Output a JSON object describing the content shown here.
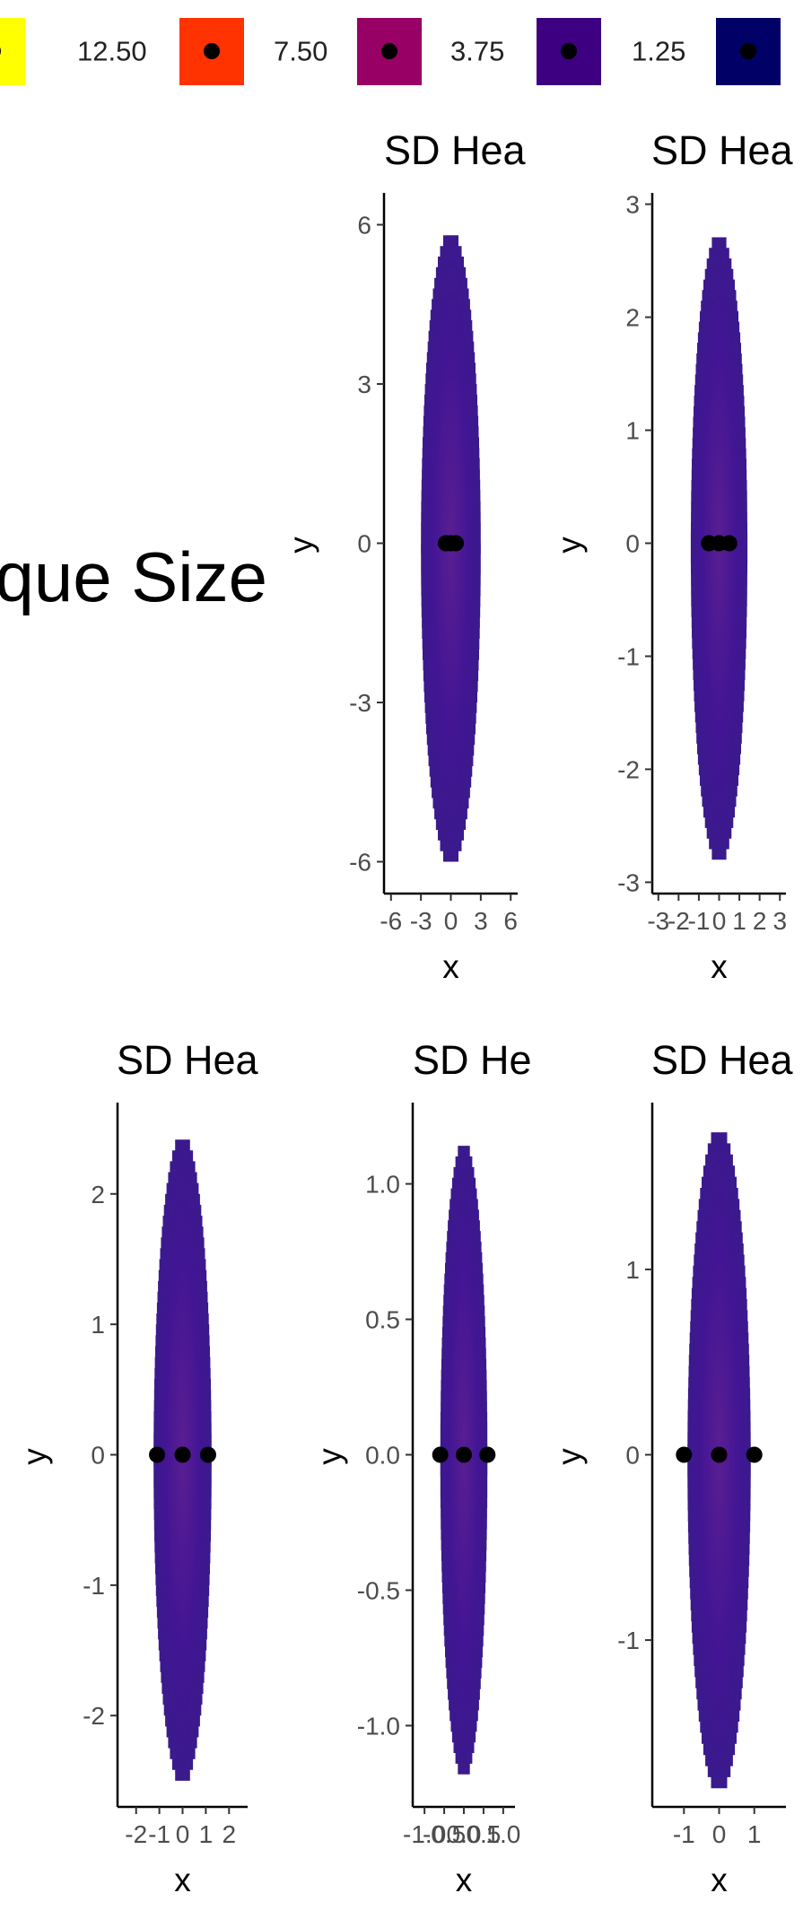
{
  "legend": {
    "items": [
      {
        "label": "12.50",
        "color": "#ffff00"
      },
      {
        "label": "7.50",
        "color": "#ff3300"
      },
      {
        "label": "3.75",
        "color": "#990066"
      },
      {
        "label": "1.25",
        "color": "#3d0080"
      },
      {
        "label": "",
        "color": "#000066"
      }
    ]
  },
  "side_label": "que Size",
  "colors": {
    "fill_main": "#421594",
    "fill_edge": "#3a1a8c",
    "fill_center": "#5a1e92",
    "point": "#000000"
  },
  "chart_data": [
    {
      "type": "heatmap",
      "title": "SD Hea",
      "xlabel": "x",
      "ylabel": "y",
      "xlim": [
        -6.7,
        6.7
      ],
      "ylim": [
        -6.6,
        6.6
      ],
      "x_ticks": [
        "-6",
        "-3",
        "0",
        "3",
        "6"
      ],
      "x_tick_values": [
        -6,
        -3,
        0,
        3,
        6
      ],
      "y_ticks": [
        "6",
        "3",
        "0",
        "-3",
        "-6"
      ],
      "y_tick_values": [
        6,
        3,
        0,
        -3,
        -6
      ],
      "ellipse": {
        "rx": 3.0,
        "ry": 6.0
      },
      "points": [
        {
          "x": -0.5,
          "y": 0
        },
        {
          "x": 0,
          "y": 0
        },
        {
          "x": 0.5,
          "y": 0
        }
      ]
    },
    {
      "type": "heatmap",
      "title": "SD Hea",
      "xlabel": "x",
      "ylabel": "y",
      "xlim": [
        -3.3,
        3.3
      ],
      "ylim": [
        -3.1,
        3.1
      ],
      "x_ticks": [
        "-3",
        "-2",
        "-1",
        "0",
        "1",
        "2",
        "3"
      ],
      "x_tick_values": [
        -3,
        -2,
        -1,
        0,
        1,
        2,
        3
      ],
      "y_ticks": [
        "3",
        "2",
        "1",
        "0",
        "-1",
        "-2",
        "-3"
      ],
      "y_tick_values": [
        3,
        2,
        1,
        0,
        -1,
        -2,
        -3
      ],
      "ellipse": {
        "rx": 1.4,
        "ry": 2.8
      },
      "points": [
        {
          "x": -0.5,
          "y": 0
        },
        {
          "x": 0,
          "y": 0
        },
        {
          "x": 0.5,
          "y": 0
        }
      ]
    },
    {
      "type": "heatmap",
      "title": "SD Hea",
      "xlabel": "x",
      "ylabel": "y",
      "xlim": [
        -2.8,
        2.8
      ],
      "ylim": [
        -2.7,
        2.7
      ],
      "x_ticks": [
        "-2",
        "-1",
        "0",
        "1",
        "2"
      ],
      "x_tick_values": [
        -2,
        -1,
        0,
        1,
        2
      ],
      "y_ticks": [
        "2",
        "1",
        "0",
        "-1",
        "-2"
      ],
      "y_tick_values": [
        2,
        1,
        0,
        -1,
        -2
      ],
      "ellipse": {
        "rx": 1.25,
        "ry": 2.5
      },
      "points": [
        {
          "x": -1.1,
          "y": 0
        },
        {
          "x": 0,
          "y": 0
        },
        {
          "x": 1.1,
          "y": 0
        }
      ]
    },
    {
      "type": "heatmap",
      "title": "SD He",
      "xlabel": "x",
      "ylabel": "y",
      "xlim": [
        -1.3,
        1.3
      ],
      "ylim": [
        -1.3,
        1.3
      ],
      "x_ticks": [
        "-1.0",
        "-0.5",
        "0.0",
        "0.5",
        "1.0"
      ],
      "x_tick_values": [
        -1,
        -0.5,
        0,
        0.5,
        1
      ],
      "y_ticks": [
        "1.0",
        "0.5",
        "0.0",
        "-0.5",
        "-1.0"
      ],
      "y_tick_values": [
        1,
        0.5,
        0,
        -0.5,
        -1
      ],
      "ellipse": {
        "rx": 0.6,
        "ry": 1.18
      },
      "points": [
        {
          "x": -0.6,
          "y": 0
        },
        {
          "x": 0,
          "y": 0
        },
        {
          "x": 0.6,
          "y": 0
        }
      ]
    },
    {
      "type": "heatmap",
      "title": "SD Hea",
      "xlabel": "x",
      "ylabel": "y",
      "xlim": [
        -1.9,
        1.9
      ],
      "ylim": [
        -1.9,
        1.9
      ],
      "x_ticks": [
        "-1",
        "0",
        "1"
      ],
      "x_tick_values": [
        -1,
        0,
        1
      ],
      "y_ticks": [
        "1",
        "0",
        "-1"
      ],
      "y_tick_values": [
        1,
        0,
        -1
      ],
      "ellipse": {
        "rx": 0.9,
        "ry": 1.8
      },
      "points": [
        {
          "x": -1.0,
          "y": 0
        },
        {
          "x": 0,
          "y": 0
        },
        {
          "x": 1.0,
          "y": 0
        }
      ]
    }
  ]
}
